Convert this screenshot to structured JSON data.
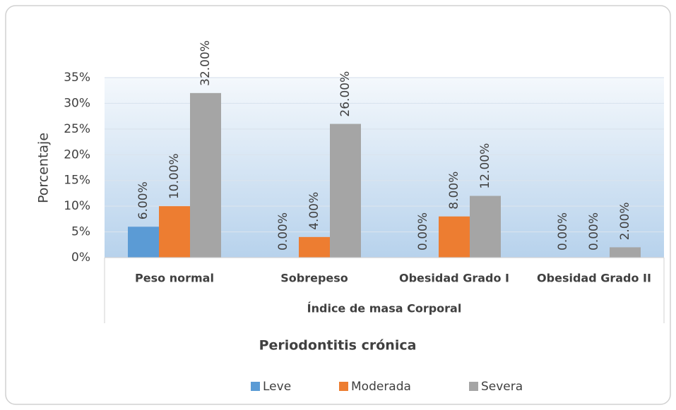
{
  "chart_data": {
    "type": "bar",
    "y_label": "Porcentaje",
    "x_label": "Índice de masa Corporal",
    "legend_title": "Periodontitis crónica",
    "categories": [
      "Peso normal",
      "Sobrepeso",
      "Obesidad Grado I",
      "Obesidad Grado II"
    ],
    "series": [
      {
        "name": "Leve",
        "color": "#5b9bd5",
        "values": [
          6,
          0,
          0,
          0
        ],
        "value_labels": [
          "6.00%",
          "0.00%",
          "0.00%",
          "0.00%"
        ]
      },
      {
        "name": "Moderada",
        "color": "#ed7d31",
        "values": [
          10,
          4,
          8,
          0
        ],
        "value_labels": [
          "10.00%",
          "4.00%",
          "8.00%",
          "0.00%"
        ]
      },
      {
        "name": "Severa",
        "color": "#a5a5a5",
        "values": [
          32,
          26,
          12,
          2
        ],
        "value_labels": [
          "32.00%",
          "26.00%",
          "12.00%",
          "2.00%"
        ]
      }
    ],
    "ylim": [
      0,
      35
    ],
    "yticks": [
      {
        "value": 0,
        "label": "0%"
      },
      {
        "value": 5,
        "label": "5%"
      },
      {
        "value": 10,
        "label": "10%"
      },
      {
        "value": 15,
        "label": "15%"
      },
      {
        "value": 20,
        "label": "20%"
      },
      {
        "value": 25,
        "label": "25%"
      },
      {
        "value": 30,
        "label": "30%"
      },
      {
        "value": 35,
        "label": "35%"
      }
    ],
    "grid": true,
    "legend": "bottom"
  }
}
